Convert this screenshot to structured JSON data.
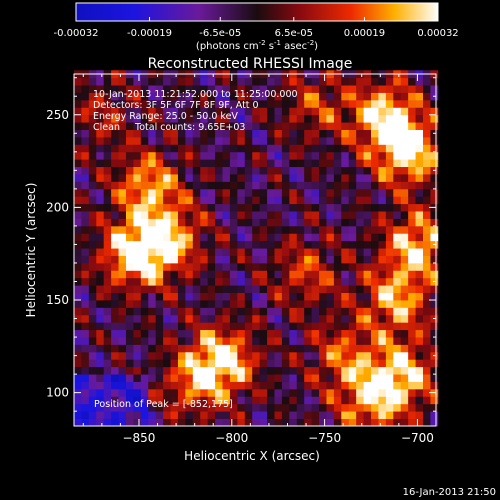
{
  "chart_data": {
    "type": "heatmap",
    "title": "Reconstructed RHESSI Image",
    "xlabel": "Heliocentric X (arcsec)",
    "ylabel": "Heliocentric Y (arcsec)",
    "xlim": [
      -885,
      -690
    ],
    "ylim": [
      82,
      272
    ],
    "x_ticks": [
      -850,
      -800,
      -750,
      -700
    ],
    "y_ticks": [
      100,
      150,
      200,
      250
    ],
    "colorbar": {
      "ticks": [
        "-0.00032",
        "-0.00019",
        "-6.5e-05",
        "6.5e-05",
        "0.00019",
        "0.00032"
      ],
      "unit_line1": "(photons cm",
      "unit_exp1": "-2",
      "unit_line2": " s",
      "unit_exp2": "-1",
      "unit_line3": " asec",
      "unit_exp3": "-2",
      "unit_close": ")",
      "range": [
        -0.00032,
        0.00032
      ]
    },
    "info_lines": [
      "10-Jan-2013 11:21:52.000 to 11:25:00.000",
      "Detectors: 3F 5F 6F 7F 8F 9F, Att 0",
      "Energy Range: 25.0 - 50.0 keV",
      "Clean     Total counts: 9.65E+03"
    ],
    "peak_label": "Position of Peak = [-852,175]",
    "sources": [
      {
        "x": -852,
        "y": 175,
        "amp": 1.0
      },
      {
        "x": -845,
        "y": 212,
        "amp": 0.75
      },
      {
        "x": -833,
        "y": 183,
        "amp": 0.7
      },
      {
        "x": -805,
        "y": 118,
        "amp": 0.9
      },
      {
        "x": -820,
        "y": 105,
        "amp": 0.55
      },
      {
        "x": -705,
        "y": 230,
        "amp": 0.95
      },
      {
        "x": -718,
        "y": 250,
        "amp": 0.85
      },
      {
        "x": -700,
        "y": 180,
        "amp": 0.85
      },
      {
        "x": -712,
        "y": 150,
        "amp": 0.75
      },
      {
        "x": -708,
        "y": 110,
        "amp": 0.8
      },
      {
        "x": -725,
        "y": 95,
        "amp": 0.7
      },
      {
        "x": -755,
        "y": 255,
        "amp": 0.45
      },
      {
        "x": -760,
        "y": 165,
        "amp": 0.5
      },
      {
        "x": -740,
        "y": 120,
        "amp": 0.55
      },
      {
        "x": -870,
        "y": 250,
        "amp": 0.35
      }
    ]
  },
  "footer_timestamp": "16-Jan-2013 21:50"
}
